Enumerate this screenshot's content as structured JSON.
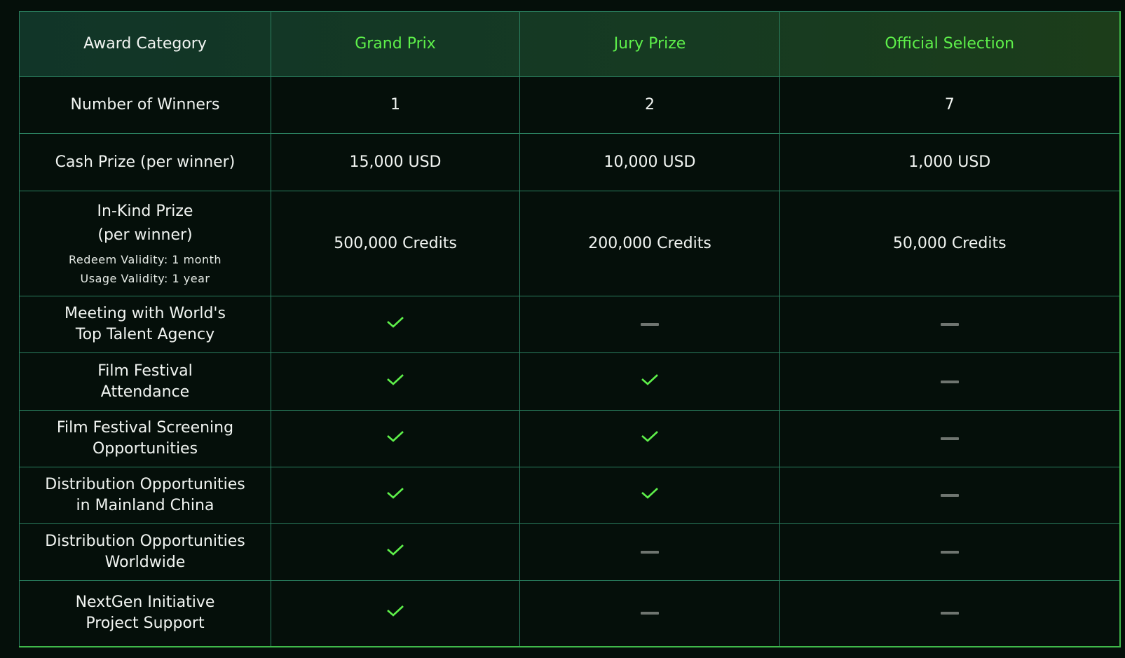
{
  "colors": {
    "background": "#050f0a",
    "border": "#2a7f5f",
    "accent": "#5ef04a",
    "dash": "#6f7570"
  },
  "header": {
    "category": "Award Category",
    "columns": [
      "Grand Prix",
      "Jury Prize",
      "Official Selection"
    ]
  },
  "rows": [
    {
      "label": "Number of Winners",
      "values": [
        "1",
        "2",
        "7"
      ]
    },
    {
      "label": "Cash Prize (per winner)",
      "values": [
        "15,000 USD",
        "10,000 USD",
        "1,000 USD"
      ]
    },
    {
      "label": "In-Kind Prize",
      "label2": "(per winner)",
      "note1": "Redeem Validity: 1 month",
      "note2": "Usage Validity: 1 year",
      "values": [
        "500,000 Credits",
        "200,000 Credits",
        "50,000 Credits"
      ]
    }
  ],
  "benefits": [
    {
      "label": "Meeting with World's",
      "label2": "Top Talent Agency",
      "included": [
        true,
        false,
        false
      ]
    },
    {
      "label": "Film Festival",
      "label2": "Attendance",
      "included": [
        true,
        true,
        false
      ]
    },
    {
      "label": "Film Festival Screening",
      "label2": "Opportunities",
      "included": [
        true,
        true,
        false
      ]
    },
    {
      "label": "Distribution Opportunities",
      "label2": "in Mainland China",
      "included": [
        true,
        true,
        false
      ]
    },
    {
      "label": "Distribution Opportunities",
      "label2": "Worldwide",
      "included": [
        true,
        false,
        false
      ]
    },
    {
      "label": "NextGen Initiative",
      "label2": "Project Support",
      "included": [
        true,
        false,
        false
      ]
    }
  ]
}
